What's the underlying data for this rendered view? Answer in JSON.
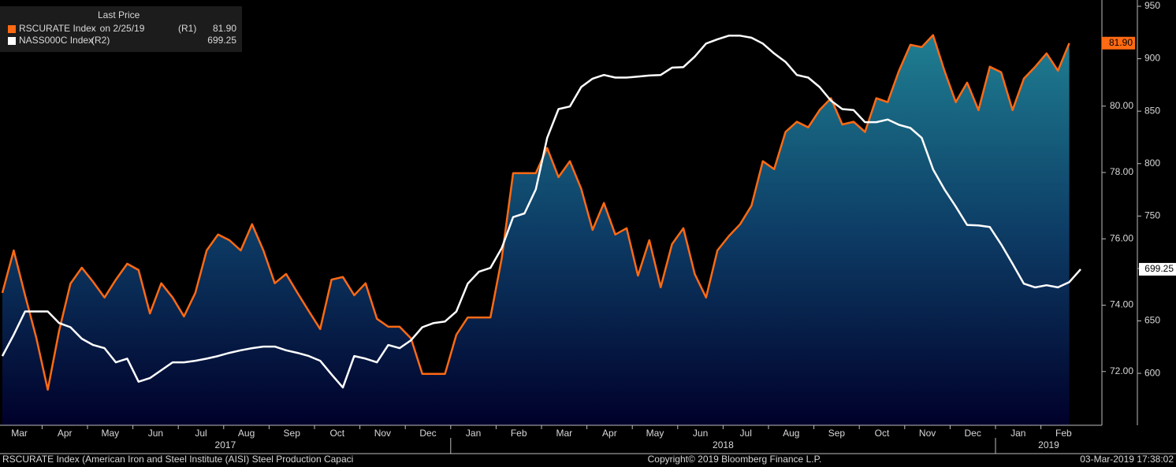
{
  "chart_data": {
    "type": "line",
    "legend_title": "Last Price",
    "categories": [
      "Mar",
      null,
      null,
      null,
      "Apr",
      null,
      null,
      null,
      "May",
      null,
      null,
      null,
      "Jun",
      null,
      null,
      null,
      "Jul",
      null,
      null,
      null,
      "Aug",
      null,
      null,
      null,
      "Sep",
      null,
      null,
      null,
      "Oct",
      null,
      null,
      null,
      "Nov",
      null,
      null,
      null,
      "Dec",
      null,
      null,
      null,
      "Jan",
      null,
      null,
      null,
      "Feb",
      null,
      null,
      null,
      "Mar",
      null,
      null,
      null,
      "Apr",
      null,
      null,
      null,
      "May",
      null,
      null,
      null,
      "Jun",
      null,
      null,
      null,
      "Jul",
      null,
      null,
      null,
      "Aug",
      null,
      null,
      null,
      "Sep",
      null,
      null,
      null,
      "Oct",
      null,
      null,
      null,
      "Nov",
      null,
      null,
      null,
      "Dec",
      null,
      null,
      null,
      "Jan",
      null,
      null,
      null,
      "Feb",
      null,
      null,
      null
    ],
    "years": [
      "2017",
      "2018",
      "2019"
    ],
    "series": [
      {
        "name": "RSCURATE Index",
        "legend_note": "-  on 2/25/19",
        "axis_label": "(R1)",
        "axis": "y",
        "color": "#ff6a13",
        "area": true,
        "values": [
          74.37,
          75.65,
          74.3,
          73.0,
          71.45,
          73.23,
          74.65,
          75.13,
          74.7,
          74.23,
          74.77,
          75.25,
          75.06,
          73.75,
          74.66,
          74.23,
          73.66,
          74.37,
          75.65,
          76.13,
          75.96,
          75.65,
          76.44,
          75.65,
          74.66,
          74.94,
          74.37,
          73.82,
          73.28,
          74.77,
          74.85,
          74.3,
          74.66,
          73.59,
          73.35,
          73.35,
          73.0,
          71.93,
          71.93,
          71.93,
          73.11,
          73.63,
          73.63,
          73.63,
          75.42,
          77.98,
          77.98,
          77.98,
          78.74,
          77.86,
          78.34,
          77.51,
          76.27,
          77.08,
          76.13,
          76.32,
          74.89,
          75.96,
          74.54,
          75.84,
          76.32,
          74.94,
          74.23,
          75.65,
          76.08,
          76.44,
          77.0,
          78.34,
          78.1,
          79.22,
          79.53,
          79.36,
          79.88,
          80.24,
          79.45,
          79.53,
          79.22,
          80.24,
          80.12,
          81.07,
          81.85,
          81.78,
          82.14,
          81.07,
          80.12,
          80.71,
          79.88,
          81.19,
          81.02,
          79.88,
          80.83,
          81.19,
          81.59,
          81.07,
          81.9,
          null
        ],
        "value_labels": [
          null,
          null,
          null,
          null,
          null,
          null,
          null,
          null,
          null,
          null,
          null,
          null,
          null,
          null,
          null,
          null,
          null,
          null,
          null,
          null,
          null,
          null,
          null,
          null,
          null,
          null,
          null,
          null,
          null,
          null,
          null,
          null,
          null,
          null,
          null,
          null,
          null,
          null,
          null,
          null,
          null,
          null,
          null,
          null,
          null,
          null,
          null,
          null,
          null,
          null,
          null,
          null,
          null,
          null,
          null,
          null,
          null,
          null,
          null,
          null,
          null,
          null,
          null,
          null,
          null,
          null,
          null,
          null,
          null,
          null,
          null,
          null,
          null,
          null,
          null,
          null,
          null,
          null,
          null,
          null,
          null,
          null,
          null,
          null,
          null,
          null,
          null,
          null,
          null,
          null,
          null,
          null,
          null,
          null,
          "81.90",
          null
        ]
      },
      {
        "name": "NASS000C Index",
        "axis_label": "(R2)",
        "axis": "y2",
        "color": "#ffffff",
        "area": false,
        "values": [
          616.5,
          636.8,
          659,
          659,
          659,
          648,
          644,
          633,
          627,
          624,
          610.5,
          614,
          592,
          595.5,
          603,
          610.5,
          610.5,
          612,
          614,
          616.5,
          619.5,
          622,
          624,
          625.5,
          625.5,
          622,
          619.5,
          616.5,
          612,
          599,
          586.5,
          616.5,
          614,
          610.5,
          627,
          624,
          631.5,
          644,
          648,
          649.5,
          659,
          685.5,
          697,
          700.5,
          719.5,
          749,
          752.5,
          775.5,
          824.5,
          852,
          854.5,
          873,
          881,
          884.5,
          882,
          882,
          883,
          884,
          884.5,
          891.5,
          892,
          902,
          914.5,
          918.5,
          922,
          922,
          920,
          914.5,
          905,
          897,
          884.5,
          882,
          873,
          860,
          852,
          851,
          839.5,
          839.5,
          842,
          837,
          834,
          824.5,
          794.5,
          775.5,
          759,
          741.5,
          741,
          739.5,
          723,
          704.5,
          685.5,
          682,
          684,
          682,
          687,
          699.25
        ]
      }
    ],
    "ylim": [
      70.38,
      83.2
    ],
    "yticks": [
      {
        "value": 72,
        "label": "72.00"
      },
      {
        "value": 74,
        "label": "74.00"
      },
      {
        "value": 76,
        "label": "76.00"
      },
      {
        "value": 78,
        "label": "78.00"
      },
      {
        "value": 80,
        "label": "80.00"
      }
    ],
    "y2lim": [
      550.5,
      956
    ],
    "y2ticks": [
      600,
      650,
      700,
      750,
      800,
      850,
      900,
      950
    ],
    "grid": false,
    "legend": "top-left",
    "footer_left": "RSCURATE Index (American Iron and Steel Institute (AISI) Steel Production Capaci",
    "footer_center": "Copyright© 2019 Bloomberg Finance L.P.",
    "footer_right": "03-Mar-2019 17:38:02"
  }
}
